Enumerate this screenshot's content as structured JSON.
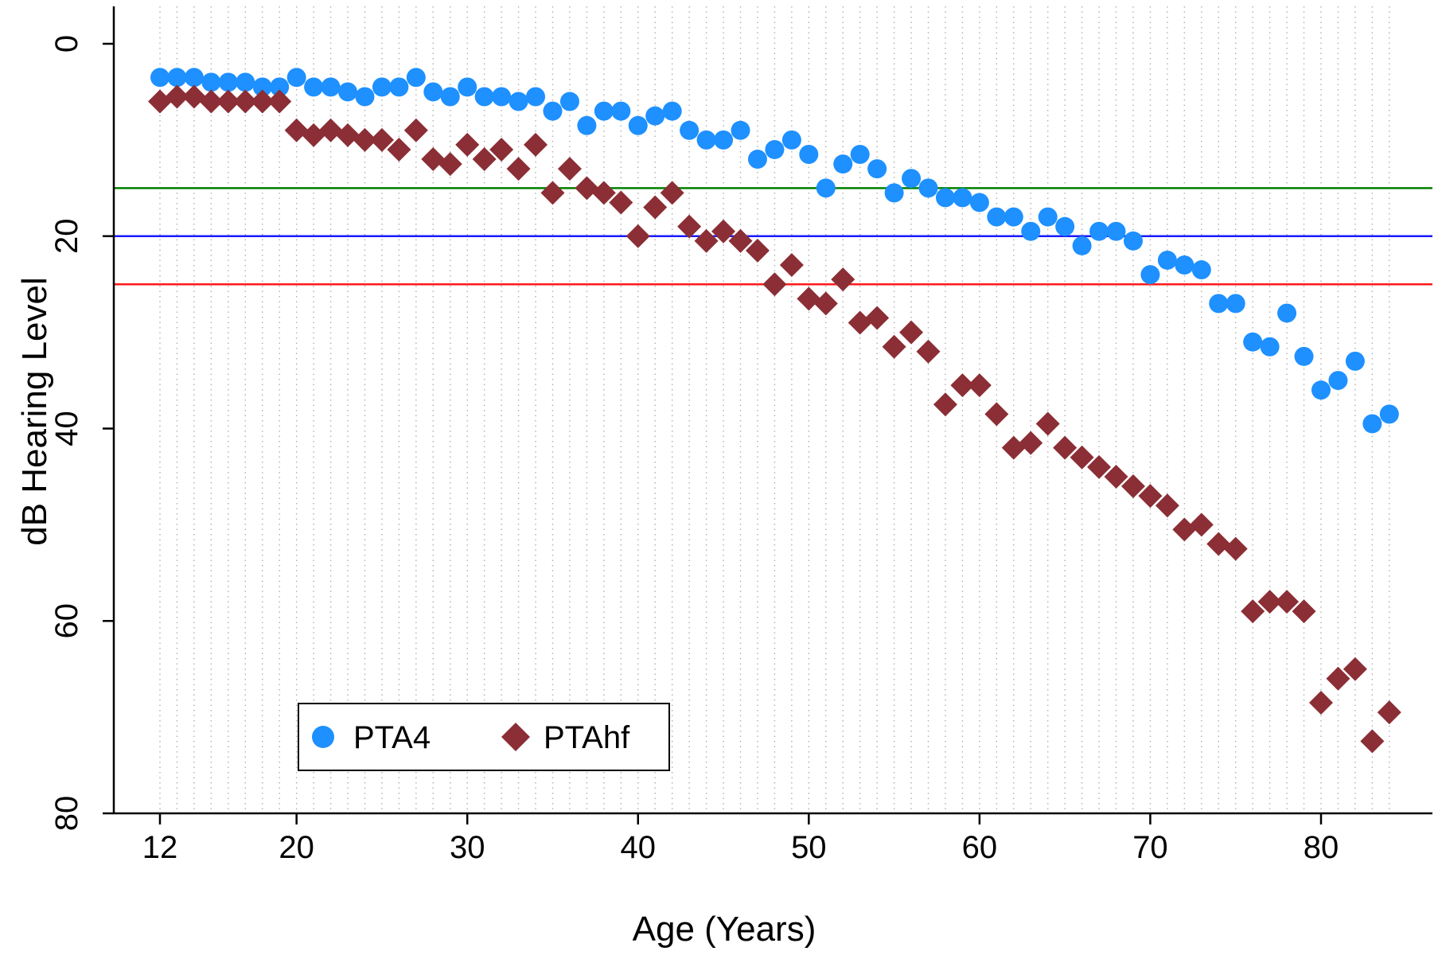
{
  "chart_data": {
    "type": "scatter",
    "title": "",
    "xlabel": "Age (Years)",
    "ylabel": "dB Hearing Level",
    "xlim": [
      10,
      87
    ],
    "ylim": [
      0,
      80
    ],
    "y_inverted": true,
    "x_ticks": [
      12,
      20,
      30,
      40,
      50,
      60,
      70,
      80
    ],
    "y_ticks": [
      0,
      20,
      40,
      60,
      80
    ],
    "grid": "dotted vertical at each year",
    "reference_lines": [
      {
        "y": 15,
        "color": "#008000"
      },
      {
        "y": 20,
        "color": "#1a1aff"
      },
      {
        "y": 25,
        "color": "#ff1a1a"
      }
    ],
    "legend": {
      "placement": "bottom-left"
    },
    "series": [
      {
        "name": "PTA4",
        "marker": "circle",
        "color": "#1e90ff",
        "x": [
          12,
          13,
          14,
          15,
          16,
          17,
          18,
          19,
          20,
          21,
          22,
          23,
          24,
          25,
          26,
          27,
          28,
          29,
          30,
          31,
          32,
          33,
          34,
          35,
          36,
          37,
          38,
          39,
          40,
          41,
          42,
          43,
          44,
          45,
          46,
          47,
          48,
          49,
          50,
          51,
          52,
          53,
          54,
          55,
          56,
          57,
          58,
          59,
          60,
          61,
          62,
          63,
          64,
          65,
          66,
          67,
          68,
          69,
          70,
          71,
          72,
          73,
          74,
          75,
          76,
          77,
          78,
          79,
          80,
          81,
          82,
          83,
          84
        ],
        "y": [
          3.5,
          3.5,
          3.5,
          4,
          4,
          4,
          4.5,
          4.5,
          3.5,
          4.5,
          4.5,
          5,
          5.5,
          4.5,
          4.5,
          3.5,
          5,
          5.5,
          4.5,
          5.5,
          5.5,
          6,
          5.5,
          7,
          6,
          8.5,
          7,
          7,
          8.5,
          7.5,
          7,
          9,
          10,
          10,
          9,
          12,
          11,
          10,
          11.5,
          15,
          12.5,
          11.5,
          13,
          15.5,
          14,
          15,
          16,
          16,
          16.5,
          18,
          18,
          19.5,
          18,
          19,
          21,
          19.5,
          19.5,
          20.5,
          24,
          22.5,
          23,
          23.5,
          27,
          27,
          31,
          31.5,
          28,
          32.5,
          36,
          35,
          33,
          39.5,
          38.5
        ]
      },
      {
        "name": "PTAhf",
        "marker": "diamond",
        "color": "#8b2e35",
        "x": [
          12,
          13,
          14,
          15,
          16,
          17,
          18,
          19,
          20,
          21,
          22,
          23,
          24,
          25,
          26,
          27,
          28,
          29,
          30,
          31,
          32,
          33,
          34,
          35,
          36,
          37,
          38,
          39,
          40,
          41,
          42,
          43,
          44,
          45,
          46,
          47,
          48,
          49,
          50,
          51,
          52,
          53,
          54,
          55,
          56,
          57,
          58,
          59,
          60,
          61,
          62,
          63,
          64,
          65,
          66,
          67,
          68,
          69,
          70,
          71,
          72,
          73,
          74,
          75,
          76,
          77,
          78,
          79,
          80,
          81,
          82,
          83,
          84
        ],
        "y": [
          6,
          5.5,
          5.5,
          6,
          6,
          6,
          6,
          6,
          9,
          9.5,
          9,
          9.5,
          10,
          10,
          11,
          9,
          12,
          12.5,
          10.5,
          12,
          11,
          13,
          10.5,
          15.5,
          13,
          15,
          15.5,
          16.5,
          20,
          17,
          15.5,
          19,
          20.5,
          19.5,
          20.5,
          21.5,
          25,
          23,
          26.5,
          27,
          24.5,
          29,
          28.5,
          31.5,
          30,
          32,
          37.5,
          35.5,
          35.5,
          38.5,
          42,
          41.5,
          39.5,
          42,
          43,
          44,
          45,
          46,
          47,
          48,
          50.5,
          50,
          52,
          52.5,
          59,
          58,
          58,
          59,
          68.5,
          66,
          65,
          72.5,
          69.5
        ]
      }
    ]
  }
}
